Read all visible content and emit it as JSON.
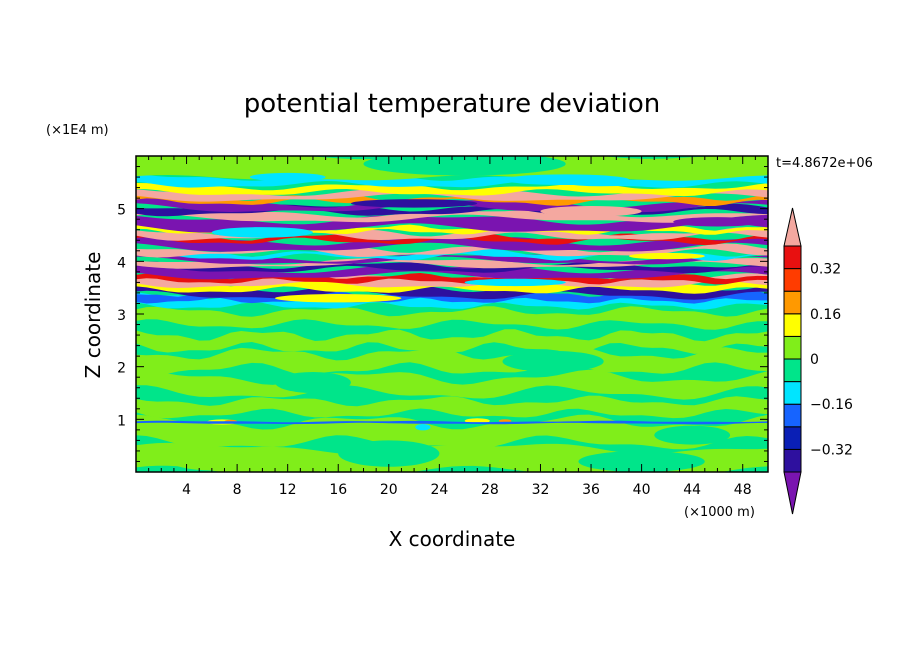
{
  "chart_data": {
    "type": "heatmap",
    "title": "potential temperature deviation",
    "xlabel": "X coordinate",
    "ylabel": "Z coordinate",
    "x_scale_label": "(×1000 m)",
    "y_scale_label": "(×1E4 m)",
    "time_label": "t=4.8672e+06",
    "xlim": [
      0,
      50
    ],
    "ylim": [
      0,
      6
    ],
    "x_ticks": [
      "4",
      "8",
      "12",
      "16",
      "20",
      "24",
      "28",
      "32",
      "36",
      "40",
      "44",
      "48"
    ],
    "y_ticks": [
      "1",
      "2",
      "3",
      "4",
      "5"
    ],
    "colorbar": {
      "levels": [
        -0.4,
        -0.32,
        -0.24,
        -0.16,
        -0.08,
        0,
        0.08,
        0.16,
        0.24,
        0.32,
        0.4
      ],
      "tick_labels": [
        "0.32",
        "0.16",
        "0",
        "−0.16",
        "−0.32"
      ],
      "colors": [
        "#7a14b0",
        "#2e109e",
        "#0a1fb5",
        "#1664ff",
        "#00e5ff",
        "#00e58a",
        "#80ee1a",
        "#ffff00",
        "#ff9900",
        "#ff3c00",
        "#e81010",
        "#f4a8a0"
      ]
    },
    "bands": [
      {
        "z": [
          0.0,
          0.55
        ],
        "class": "0"
      },
      {
        "z": [
          0.55,
          0.9
        ],
        "class": "0.08"
      },
      {
        "z": [
          0.9,
          1.1
        ],
        "class": "0"
      },
      {
        "z": [
          1.1,
          2.8
        ],
        "class": "mix-0"
      },
      {
        "z": [
          2.8,
          3.2
        ],
        "class": "0"
      },
      {
        "z": [
          3.2,
          3.35
        ],
        "class": "-0.08"
      },
      {
        "z": [
          3.35,
          5.45
        ],
        "class": "strong-layers"
      },
      {
        "z": [
          5.45,
          5.7
        ],
        "class": "-0.08"
      },
      {
        "z": [
          5.7,
          6.0
        ],
        "class": "0.08"
      }
    ]
  }
}
